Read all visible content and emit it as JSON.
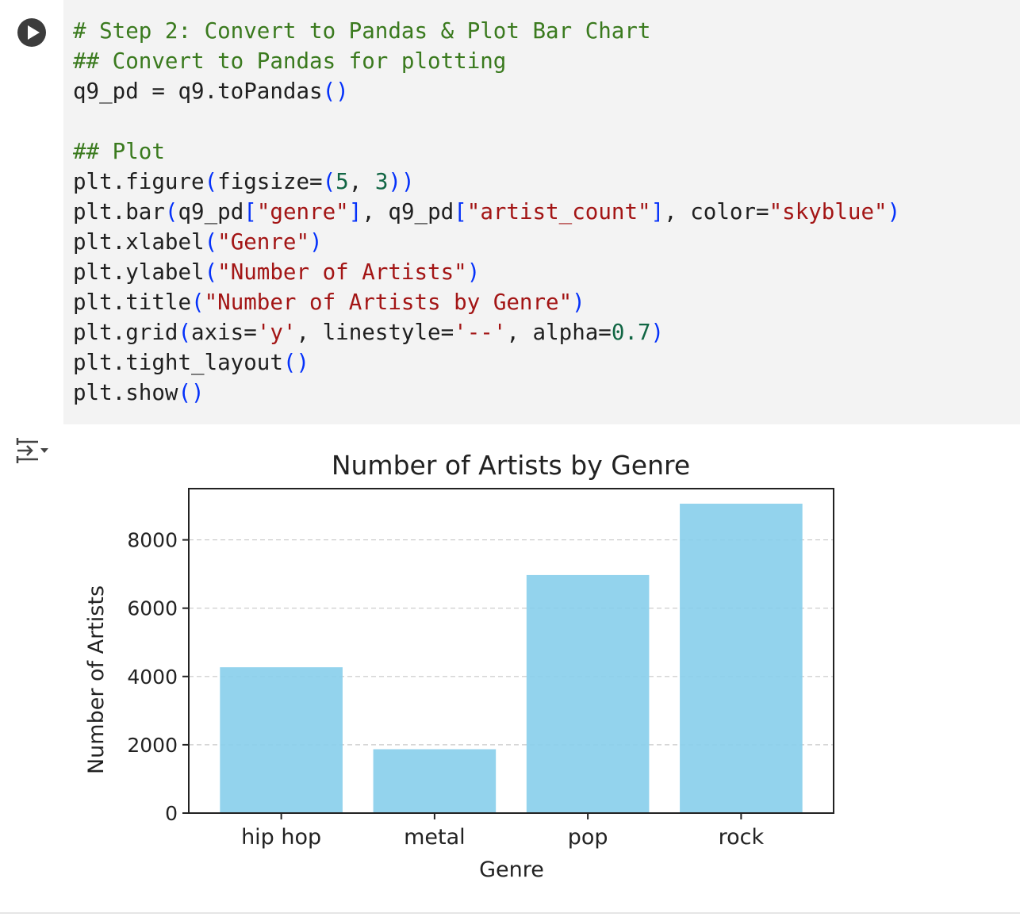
{
  "cell": {
    "run_button_icon": "play-icon",
    "code_lines": [
      "# Step 2: Convert to Pandas & Plot Bar Chart",
      "## Convert to Pandas for plotting",
      "q9_pd = q9.toPandas()",
      "",
      "## Plot",
      "plt.figure(figsize=(5, 3))",
      "plt.bar(q9_pd[\"genre\"], q9_pd[\"artist_count\"], color=\"skyblue\")",
      "plt.xlabel(\"Genre\")",
      "plt.ylabel(\"Number of Artists\")",
      "plt.title(\"Number of Artists by Genre\")",
      "plt.grid(axis='y', linestyle='--', alpha=0.7)",
      "plt.tight_layout()",
      "plt.show()"
    ]
  },
  "output": {
    "toggle_icon": "output-toggle-icon"
  },
  "chart_data": {
    "type": "bar",
    "title": "Number of Artists by Genre",
    "xlabel": "Genre",
    "ylabel": "Number of Artists",
    "categories": [
      "hip hop",
      "metal",
      "pop",
      "rock"
    ],
    "values": [
      4270,
      1870,
      6970,
      9060
    ],
    "ylim": [
      0,
      9500
    ],
    "yticks": [
      0,
      2000,
      4000,
      6000,
      8000
    ],
    "bar_color": "#87ceeb",
    "grid": "y, dashed",
    "legend": false
  }
}
